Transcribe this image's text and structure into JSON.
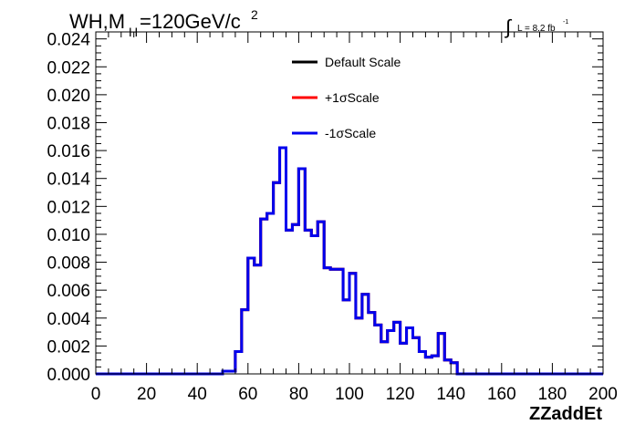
{
  "chart_data": {
    "type": "line",
    "title": "WH,M",
    "title_sub": "H",
    "title_rest": "=120GeV/c",
    "title_sup": "2",
    "luminosity": {
      "integral_symbol": "∫",
      "text": "L = 8.2 fb",
      "sup": "-1"
    },
    "xlabel": "ZZaddEt",
    "ylabel": "",
    "xlim": [
      0,
      200
    ],
    "ylim": [
      0,
      0.0245
    ],
    "x_ticks": [
      "0",
      "20",
      "40",
      "60",
      "80",
      "100",
      "120",
      "140",
      "160",
      "180",
      "200"
    ],
    "y_ticks": [
      "0.000",
      "0.002",
      "0.004",
      "0.006",
      "0.008",
      "0.010",
      "0.012",
      "0.014",
      "0.016",
      "0.018",
      "0.020",
      "0.022",
      "0.024"
    ],
    "legend_position": "top-center",
    "bin_edges": [
      0,
      5,
      10,
      15,
      20,
      25,
      30,
      35,
      40,
      45,
      50,
      55,
      57.5,
      60,
      62.5,
      65,
      67.5,
      70,
      72.5,
      75,
      77.5,
      80,
      82.5,
      85,
      87.5,
      90,
      92.5,
      95,
      97.5,
      100,
      102.5,
      105,
      107.5,
      110,
      112.5,
      115,
      117.5,
      120,
      122.5,
      125,
      127.5,
      130,
      132.5,
      135,
      137.5,
      140,
      142.5,
      145,
      147.5,
      150,
      152.5,
      155,
      157.5,
      160,
      162.5,
      165,
      167.5,
      170,
      172.5,
      175,
      177.5,
      180,
      182.5,
      185,
      187.5,
      190,
      192.5,
      195,
      197.5,
      200
    ],
    "series": [
      {
        "name": "Default Scale",
        "color": "#000000",
        "values": [
          0,
          0,
          0,
          0,
          0,
          0,
          0,
          0,
          0,
          0,
          0.0002,
          0.0016,
          0.0046,
          0.0083,
          0.0078,
          0.0111,
          0.0115,
          0.0137,
          0.0162,
          0.0103,
          0.0107,
          0.0147,
          0.0103,
          0.0099,
          0.0109,
          0.0076,
          0.0075,
          0.0075,
          0.0053,
          0.0072,
          0.004,
          0.0057,
          0.0044,
          0.0035,
          0.0023,
          0.0031,
          0.0037,
          0.0022,
          0.0033,
          0.0026,
          0.0016,
          0.0012,
          0.0013,
          0.0029,
          0.001,
          0.0008,
          0,
          0,
          0,
          0,
          0,
          0,
          0,
          0,
          0,
          0,
          0,
          0,
          0,
          0,
          0,
          0,
          0,
          0,
          0,
          0,
          0,
          0,
          0
        ]
      },
      {
        "name": "+1σScale",
        "color": "#ff0000",
        "values": [
          0,
          0,
          0,
          0,
          0,
          0,
          0,
          0,
          0,
          0,
          0.0002,
          0.0016,
          0.0046,
          0.0083,
          0.0078,
          0.0111,
          0.0115,
          0.0137,
          0.0162,
          0.0103,
          0.0107,
          0.0147,
          0.0103,
          0.0099,
          0.0109,
          0.0076,
          0.0075,
          0.0075,
          0.0053,
          0.0072,
          0.004,
          0.0057,
          0.0044,
          0.0035,
          0.0023,
          0.0031,
          0.0037,
          0.0022,
          0.0033,
          0.0026,
          0.0016,
          0.0012,
          0.0013,
          0.0029,
          0.001,
          0.0008,
          0,
          0,
          0,
          0,
          0,
          0,
          0,
          0,
          0,
          0,
          0,
          0,
          0,
          0,
          0,
          0,
          0,
          0,
          0,
          0,
          0,
          0,
          0
        ]
      },
      {
        "name": "-1σScale",
        "color": "#0000ee",
        "values": [
          0,
          0,
          0,
          0,
          0,
          0,
          0,
          0,
          0,
          0,
          0.0002,
          0.0016,
          0.0046,
          0.0083,
          0.0078,
          0.0111,
          0.0115,
          0.0137,
          0.0162,
          0.0103,
          0.0107,
          0.0147,
          0.0103,
          0.0099,
          0.0109,
          0.0076,
          0.0075,
          0.0075,
          0.0053,
          0.0072,
          0.004,
          0.0057,
          0.0044,
          0.0035,
          0.0023,
          0.0031,
          0.0037,
          0.0022,
          0.0033,
          0.0026,
          0.0016,
          0.0012,
          0.0013,
          0.0029,
          0.001,
          0.0008,
          0,
          0,
          0,
          0,
          0,
          0,
          0,
          0,
          0,
          0,
          0,
          0,
          0,
          0,
          0,
          0,
          0,
          0,
          0,
          0,
          0,
          0,
          0
        ]
      }
    ]
  }
}
